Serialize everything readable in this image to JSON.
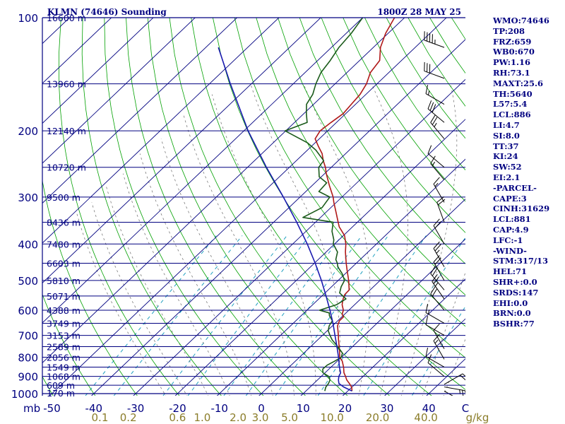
{
  "header": {
    "station_title": "KLMN (74646) Sounding",
    "valid_time": "1800Z 28 MAY 25"
  },
  "indices": [
    "WMO:74646",
    "TP:208",
    "FRZ:659",
    "WB0:670",
    "PW:1.16",
    "RH:73.1",
    "MAXT:25.6",
    "TH:5640",
    "L57:5.4",
    "LCL:886",
    "LI:4.7",
    "SI:8.0",
    "TT:37",
    "KI:24",
    "SW:52",
    "EI:2.1",
    "-PARCEL-",
    "CAPE:3",
    "CINH:31629",
    "LCL:881",
    "CAP:4.9",
    "LFC:-1",
    "-WIND-",
    "STM:317/13",
    "HEL:71",
    "SHR+:0.0",
    "SRDS:147",
    "EHI:0.0",
    "BRN:0.0",
    "BSHR:77"
  ],
  "colors": {
    "frame": "#000080",
    "isobar": "#000080",
    "isotherm": "#000080",
    "dry_adiabat": "#00a000",
    "moist_adiabat": "#7a7a7a",
    "mixing_ratio": "#20a0c0",
    "temperature": "#b01818",
    "dewpoint": "#1a5a1a",
    "parcel": "#1a1ab0",
    "wind_barb": "#000000",
    "mix_labels": "#8b7d2a"
  },
  "chart_data": {
    "type": "skew-t log-p",
    "pressure_axis": {
      "unit_label": "mb",
      "range": [
        1000,
        100
      ],
      "scale": "log",
      "ticks": [
        100,
        200,
        300,
        400,
        500,
        600,
        700,
        800,
        900,
        1000
      ],
      "tick_labels": [
        "100",
        "200",
        "300",
        "400",
        "500",
        "600",
        "700",
        "800",
        "900",
        "1000"
      ]
    },
    "temperature_axis": {
      "unit": "C",
      "range": [
        -50,
        50
      ],
      "ticks": [
        -50,
        -40,
        -30,
        -20,
        -10,
        0,
        10,
        20,
        30,
        40
      ],
      "tick_labels": [
        "-50",
        "-40",
        "-30",
        "-20",
        "-10",
        "0",
        "10",
        "20",
        "30",
        "40"
      ],
      "end_label": "C"
    },
    "mixing_ratio_axis": {
      "unit_label": "g/kg",
      "labels": [
        "0.1",
        "0.2",
        "0.6",
        "1.0",
        "2.0",
        "3.0",
        "5.0",
        "10.0",
        "20.0",
        "40.0"
      ],
      "values": [
        0.1,
        0.2,
        0.6,
        1.0,
        2.0,
        3.0,
        5.0,
        10.0,
        20.0,
        40.0
      ]
    },
    "height_labels": [
      {
        "p": 100,
        "label": "16600 m"
      },
      {
        "p": 150,
        "label": "13960 m"
      },
      {
        "p": 200,
        "label": "12140 m"
      },
      {
        "p": 250,
        "label": "10720 m"
      },
      {
        "p": 300,
        "label": "9500 m"
      },
      {
        "p": 350,
        "label": "8436 m"
      },
      {
        "p": 400,
        "label": "7480 m"
      },
      {
        "p": 450,
        "label": "6603 m"
      },
      {
        "p": 500,
        "label": "5810 m"
      },
      {
        "p": 550,
        "label": "5071 m"
      },
      {
        "p": 600,
        "label": "4388 m"
      },
      {
        "p": 650,
        "label": "3749 m"
      },
      {
        "p": 700,
        "label": "3153 m"
      },
      {
        "p": 750,
        "label": "2589 m"
      },
      {
        "p": 800,
        "label": "2056 m"
      },
      {
        "p": 850,
        "label": "1549 m"
      },
      {
        "p": 900,
        "label": "1068 m"
      },
      {
        "p": 950,
        "label": "609 m"
      },
      {
        "p": 1000,
        "label": "170 m"
      }
    ],
    "series": [
      {
        "name": "Temperature",
        "points": [
          [
            984,
            21.0
          ],
          [
            962,
            20.0
          ],
          [
            940,
            18.5
          ],
          [
            920,
            17.0
          ],
          [
            900,
            15.8
          ],
          [
            880,
            14.5
          ],
          [
            850,
            13.0
          ],
          [
            820,
            11.2
          ],
          [
            800,
            9.6
          ],
          [
            760,
            7.4
          ],
          [
            720,
            5.0
          ],
          [
            700,
            3.8
          ],
          [
            660,
            1.2
          ],
          [
            640,
            0.4
          ],
          [
            625,
            0.4
          ],
          [
            615,
            -0.6
          ],
          [
            600,
            -1.3
          ],
          [
            580,
            -3.0
          ],
          [
            560,
            -4.2
          ],
          [
            545,
            -4.9
          ],
          [
            530,
            -5.0
          ],
          [
            500,
            -7.5
          ],
          [
            470,
            -10.4
          ],
          [
            450,
            -12.4
          ],
          [
            420,
            -15.4
          ],
          [
            400,
            -17.3
          ],
          [
            380,
            -19.7
          ],
          [
            360,
            -23.2
          ],
          [
            350,
            -24.6
          ],
          [
            330,
            -27.5
          ],
          [
            310,
            -30.6
          ],
          [
            300,
            -32.1
          ],
          [
            280,
            -35.8
          ],
          [
            260,
            -39.6
          ],
          [
            250,
            -41.4
          ],
          [
            240,
            -43.6
          ],
          [
            230,
            -45.6
          ],
          [
            220,
            -48.3
          ],
          [
            210,
            -51.0
          ],
          [
            200,
            -51.8
          ],
          [
            190,
            -51.3
          ],
          [
            180,
            -50.6
          ],
          [
            170,
            -51.0
          ],
          [
            160,
            -51.4
          ],
          [
            150,
            -52.5
          ],
          [
            140,
            -54.4
          ],
          [
            130,
            -55.2
          ],
          [
            120,
            -58.3
          ],
          [
            110,
            -60.6
          ],
          [
            100,
            -62.4
          ]
        ]
      },
      {
        "name": "Dew Point",
        "points": [
          [
            984,
            14.5
          ],
          [
            962,
            13.8
          ],
          [
            940,
            13.5
          ],
          [
            920,
            13.0
          ],
          [
            900,
            11.8
          ],
          [
            880,
            9.5
          ],
          [
            860,
            8.5
          ],
          [
            840,
            8.6
          ],
          [
            820,
            9.4
          ],
          [
            800,
            10.0
          ],
          [
            780,
            9.2
          ],
          [
            760,
            7.4
          ],
          [
            740,
            5.5
          ],
          [
            720,
            3.5
          ],
          [
            700,
            1.8
          ],
          [
            680,
            0.2
          ],
          [
            660,
            -0.8
          ],
          [
            640,
            -1.3
          ],
          [
            620,
            -3.3
          ],
          [
            610,
            -4.0
          ],
          [
            600,
            -7.0
          ],
          [
            580,
            -4.3
          ],
          [
            560,
            -3.5
          ],
          [
            540,
            -6.5
          ],
          [
            520,
            -7.7
          ],
          [
            500,
            -8.5
          ],
          [
            480,
            -10.7
          ],
          [
            460,
            -13.5
          ],
          [
            450,
            -14.5
          ],
          [
            440,
            -15.8
          ],
          [
            420,
            -17.3
          ],
          [
            400,
            -20.3
          ],
          [
            390,
            -21.2
          ],
          [
            370,
            -23.8
          ],
          [
            350,
            -25.8
          ],
          [
            340,
            -34.2
          ],
          [
            320,
            -32.1
          ],
          [
            300,
            -32.9
          ],
          [
            290,
            -36.9
          ],
          [
            275,
            -37.2
          ],
          [
            265,
            -40.5
          ],
          [
            250,
            -43.0
          ],
          [
            240,
            -43.5
          ],
          [
            225,
            -48.0
          ],
          [
            215,
            -51.9
          ],
          [
            200,
            -60.2
          ],
          [
            190,
            -57.0
          ],
          [
            180,
            -59.4
          ],
          [
            170,
            -61.7
          ],
          [
            160,
            -62.7
          ],
          [
            150,
            -64.6
          ],
          [
            140,
            -66.2
          ],
          [
            130,
            -67.0
          ],
          [
            120,
            -68.2
          ],
          [
            110,
            -68.8
          ],
          [
            100,
            -70.0
          ]
        ]
      },
      {
        "name": "Parcel",
        "points": [
          [
            984,
            21.0
          ],
          [
            960,
            18.0
          ],
          [
            940,
            16.0
          ],
          [
            920,
            15.0
          ],
          [
            900,
            14.2
          ],
          [
            880,
            13.7
          ],
          [
            850,
            12.0
          ],
          [
            800,
            9.3
          ],
          [
            750,
            6.3
          ],
          [
            700,
            3.0
          ],
          [
            650,
            -0.5
          ],
          [
            600,
            -4.5
          ],
          [
            550,
            -9.0
          ],
          [
            500,
            -14.0
          ],
          [
            450,
            -19.8
          ],
          [
            400,
            -26.5
          ],
          [
            350,
            -34.5
          ],
          [
            300,
            -44.0
          ],
          [
            250,
            -55.5
          ],
          [
            200,
            -69.0
          ],
          [
            150,
            -85.0
          ],
          [
            120,
            -97.0
          ]
        ]
      }
    ],
    "wind_barbs": [
      {
        "p": 984,
        "dir": 120,
        "spd": 25
      },
      {
        "p": 960,
        "dir": 100,
        "spd": 25
      },
      {
        "p": 945,
        "dir": 60,
        "spd": 20
      },
      {
        "p": 900,
        "dir": 310,
        "spd": 10
      },
      {
        "p": 850,
        "dir": 300,
        "spd": 10
      },
      {
        "p": 810,
        "dir": 330,
        "spd": 15
      },
      {
        "p": 760,
        "dir": 330,
        "spd": 10
      },
      {
        "p": 700,
        "dir": 300,
        "spd": 10
      },
      {
        "p": 650,
        "dir": 300,
        "spd": 15
      },
      {
        "p": 600,
        "dir": 320,
        "spd": 20
      },
      {
        "p": 560,
        "dir": 325,
        "spd": 25
      },
      {
        "p": 530,
        "dir": 320,
        "spd": 20
      },
      {
        "p": 500,
        "dir": 330,
        "spd": 20
      },
      {
        "p": 460,
        "dir": 330,
        "spd": 25
      },
      {
        "p": 400,
        "dir": 330,
        "spd": 20
      },
      {
        "p": 350,
        "dir": 340,
        "spd": 20
      },
      {
        "p": 310,
        "dir": 330,
        "spd": 15
      },
      {
        "p": 270,
        "dir": 320,
        "spd": 15
      },
      {
        "p": 250,
        "dir": 310,
        "spd": 10
      },
      {
        "p": 210,
        "dir": 320,
        "spd": 25
      },
      {
        "p": 190,
        "dir": 310,
        "spd": 30
      },
      {
        "p": 170,
        "dir": 300,
        "spd": 15
      },
      {
        "p": 145,
        "dir": 290,
        "spd": 30
      },
      {
        "p": 120,
        "dir": 290,
        "spd": 45
      },
      {
        "p": 100,
        "dir": 300,
        "spd": 35
      }
    ]
  }
}
